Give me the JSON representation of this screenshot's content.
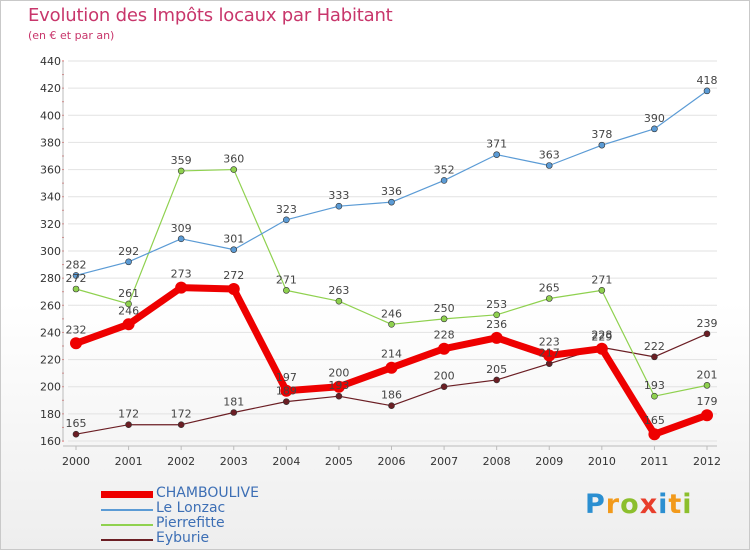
{
  "header": {
    "title": "Evolution des Impôts locaux par Habitant",
    "subtitle": "(en € et par an)"
  },
  "logo": {
    "letters": [
      "P",
      "r",
      "o",
      "x",
      "i",
      "t",
      "i"
    ],
    "colors": [
      "#2b8fd1",
      "#f29a1b",
      "#8cbf2d",
      "#e83e2c",
      "#2b8fd1",
      "#f29a1b",
      "#8cbf2d"
    ]
  },
  "chart_data": {
    "type": "line",
    "title": "Evolution des Impôts locaux par Habitant",
    "subtitle": "(en € et par an)",
    "xlabel": "",
    "ylabel": "",
    "categories": [
      "2000",
      "2001",
      "2002",
      "2003",
      "2004",
      "2005",
      "2006",
      "2007",
      "2008",
      "2009",
      "2010",
      "2011",
      "2012"
    ],
    "ylim": [
      160,
      440
    ],
    "yticks": [
      160,
      180,
      200,
      220,
      240,
      260,
      280,
      300,
      320,
      340,
      360,
      380,
      400,
      420,
      440
    ],
    "grid": "horizontal",
    "legend": "bottom-left",
    "series": [
      {
        "name": "Eyburie",
        "color": "#6b1e24",
        "values": [
          165,
          172,
          172,
          181,
          189,
          193,
          186,
          200,
          205,
          217,
          229,
          222,
          239
        ]
      },
      {
        "name": "Pierrefitte",
        "color": "#8fd14f",
        "values": [
          272,
          261,
          359,
          360,
          271,
          263,
          246,
          250,
          253,
          265,
          271,
          193,
          201
        ]
      },
      {
        "name": "Le Lonzac",
        "color": "#5b9bd5",
        "values": [
          282,
          292,
          309,
          301,
          323,
          333,
          336,
          352,
          371,
          363,
          378,
          390,
          418
        ]
      },
      {
        "name": "CHAMBOULIVE",
        "color": "#ee0000",
        "values": [
          232,
          246,
          273,
          272,
          197,
          200,
          214,
          228,
          236,
          223,
          228,
          165,
          179
        ]
      }
    ]
  }
}
